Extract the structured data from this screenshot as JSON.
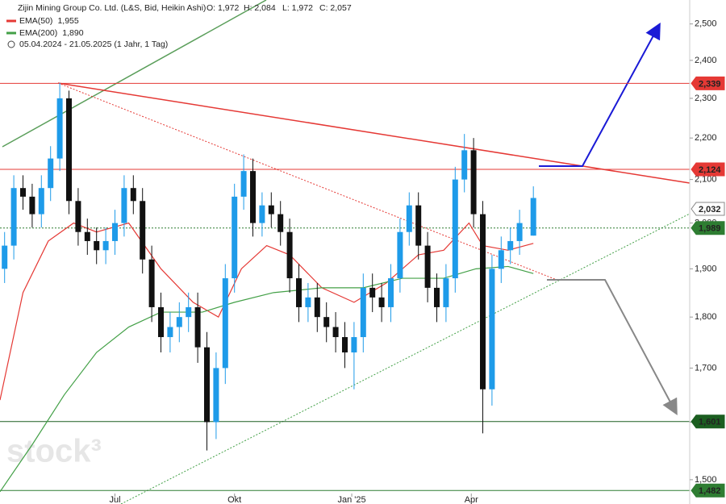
{
  "chart_data": {
    "type": "candlestick",
    "title": "Zijin Mining Group Co. Ltd. (L&S, Bid, Heikin Ashi)",
    "ohlc_labels": [
      "O: 1,972",
      "H: 2,084",
      "L: 1,972",
      "C: 2,057"
    ],
    "period": "05.04.2024 - 21.05.2025  (1 Jahr, 1 Tag)",
    "watermark": "stock³",
    "log_scale": true,
    "xlim": [
      0,
      300
    ],
    "ylim": [
      1.477,
      2.568
    ],
    "xticks": [
      {
        "value": 50,
        "label": "Jul"
      },
      {
        "value": 102,
        "label": "Okt"
      },
      {
        "value": 153,
        "label": "Jan '25"
      },
      {
        "value": 205,
        "label": "Apr"
      }
    ],
    "yticks": [
      {
        "value": 1.5,
        "label": "1,500"
      },
      {
        "value": 1.6,
        "label": "1,600"
      },
      {
        "value": 1.7,
        "label": "1,700"
      },
      {
        "value": 1.8,
        "label": "1,800"
      },
      {
        "value": 1.9,
        "label": "1,900"
      },
      {
        "value": 2.0,
        "label": "2,000"
      },
      {
        "value": 2.1,
        "label": "2,100"
      },
      {
        "value": 2.2,
        "label": "2,200"
      },
      {
        "value": 2.3,
        "label": "2,300"
      },
      {
        "value": 2.4,
        "label": "2,400"
      },
      {
        "value": 2.5,
        "label": "2,500"
      }
    ],
    "up_color": "#1e9be9",
    "down_color": "#111111",
    "candles": {
      "x": [
        2,
        6,
        10,
        14,
        18,
        22,
        26,
        30,
        34,
        38,
        42,
        46,
        50,
        54,
        58,
        62,
        66,
        70,
        74,
        78,
        82,
        86,
        90,
        94,
        98,
        102,
        106,
        110,
        114,
        118,
        122,
        126,
        130,
        134,
        138,
        142,
        146,
        150,
        154,
        158,
        162,
        166,
        170,
        174,
        178,
        182,
        186,
        190,
        194,
        198,
        202,
        206,
        210,
        214,
        218,
        222,
        226,
        232
      ],
      "open": [
        1.9,
        1.95,
        2.08,
        2.06,
        2.02,
        2.08,
        2.15,
        2.3,
        2.05,
        1.98,
        1.96,
        1.94,
        1.96,
        2.0,
        2.08,
        2.05,
        1.92,
        1.82,
        1.76,
        1.78,
        1.8,
        1.82,
        1.74,
        1.6,
        1.7,
        1.88,
        2.06,
        2.12,
        2.0,
        2.04,
        2.02,
        1.98,
        1.88,
        1.82,
        1.84,
        1.8,
        1.78,
        1.76,
        1.73,
        1.76,
        1.86,
        1.84,
        1.82,
        1.88,
        1.98,
        2.04,
        1.95,
        1.86,
        1.82,
        1.88,
        2.1,
        2.17,
        2.02,
        1.66,
        1.9,
        1.94,
        1.96,
        1.972
      ],
      "high": [
        1.98,
        2.11,
        2.11,
        2.09,
        2.11,
        2.18,
        2.34,
        2.32,
        2.08,
        2.01,
        1.99,
        1.99,
        2.03,
        2.11,
        2.11,
        2.08,
        1.95,
        1.85,
        1.81,
        1.83,
        1.85,
        1.85,
        1.77,
        1.73,
        1.91,
        2.09,
        2.16,
        2.15,
        2.07,
        2.07,
        2.05,
        2.01,
        1.91,
        1.87,
        1.87,
        1.83,
        1.81,
        1.79,
        1.79,
        1.89,
        1.89,
        1.87,
        1.91,
        2.01,
        2.07,
        2.07,
        1.98,
        1.89,
        1.91,
        2.13,
        2.21,
        2.2,
        2.05,
        1.93,
        1.97,
        1.99,
        2.03,
        2.084
      ],
      "low": [
        1.87,
        1.92,
        2.03,
        1.99,
        1.99,
        2.05,
        2.12,
        2.02,
        1.95,
        1.93,
        1.91,
        1.91,
        1.93,
        1.97,
        2.02,
        1.89,
        1.79,
        1.73,
        1.73,
        1.75,
        1.77,
        1.71,
        1.55,
        1.57,
        1.67,
        1.85,
        2.03,
        1.97,
        1.97,
        1.99,
        1.95,
        1.85,
        1.79,
        1.79,
        1.77,
        1.75,
        1.73,
        1.7,
        1.66,
        1.73,
        1.81,
        1.79,
        1.79,
        1.85,
        1.95,
        1.92,
        1.83,
        1.79,
        1.79,
        1.85,
        2.07,
        1.99,
        1.58,
        1.63,
        1.87,
        1.91,
        1.93,
        1.972
      ],
      "close": [
        1.95,
        2.08,
        2.06,
        2.02,
        2.08,
        2.15,
        2.3,
        2.05,
        1.98,
        1.96,
        1.94,
        1.96,
        2.0,
        2.08,
        2.05,
        1.92,
        1.82,
        1.76,
        1.78,
        1.8,
        1.82,
        1.74,
        1.6,
        1.7,
        1.88,
        2.06,
        2.12,
        2.0,
        2.04,
        2.02,
        1.98,
        1.88,
        1.82,
        1.84,
        1.8,
        1.78,
        1.76,
        1.73,
        1.76,
        1.86,
        1.84,
        1.82,
        1.88,
        1.98,
        2.04,
        1.95,
        1.86,
        1.82,
        1.88,
        2.1,
        2.17,
        2.02,
        1.66,
        1.9,
        1.94,
        1.96,
        2.0,
        2.057
      ]
    },
    "series": [
      {
        "name": "EMA(50)",
        "legend_value": "1,955",
        "color": "#e53935",
        "x": [
          0,
          10,
          21,
          32,
          42,
          56,
          70,
          84,
          95,
          105,
          116,
          126,
          140,
          154,
          168,
          182,
          193,
          204,
          210,
          221,
          232
        ],
        "values": [
          1.64,
          1.85,
          1.96,
          2.0,
          1.98,
          2.0,
          1.9,
          1.83,
          1.8,
          1.9,
          1.95,
          1.93,
          1.86,
          1.83,
          1.87,
          1.93,
          1.94,
          2.0,
          1.95,
          1.94,
          1.955
        ]
      },
      {
        "name": "EMA(200)",
        "legend_value": "1,890",
        "color": "#43a047",
        "x": [
          0,
          14,
          28,
          42,
          56,
          70,
          88,
          102,
          119,
          140,
          158,
          175,
          193,
          207,
          221,
          232
        ],
        "values": [
          1.48,
          1.56,
          1.65,
          1.73,
          1.78,
          1.81,
          1.81,
          1.83,
          1.85,
          1.86,
          1.86,
          1.88,
          1.88,
          1.9,
          1.905,
          1.89
        ]
      }
    ],
    "levels": [
      {
        "value": 2.339,
        "label": "2,339",
        "color": "#e53935",
        "style": "solid"
      },
      {
        "value": 2.124,
        "label": "2,124",
        "color": "#e53935",
        "style": "solid"
      },
      {
        "value": 2.032,
        "label": "2,032",
        "color": "#ffffff",
        "style": "none"
      },
      {
        "value": 1.989,
        "label": "1,989",
        "color": "#2e7d32",
        "style": "dotted"
      },
      {
        "value": 1.601,
        "label": "1,601",
        "color": "#1b5e20",
        "style": "solid"
      },
      {
        "value": 1.482,
        "label": "1,482",
        "color": "#2e7d32",
        "style": "solid"
      }
    ]
  }
}
